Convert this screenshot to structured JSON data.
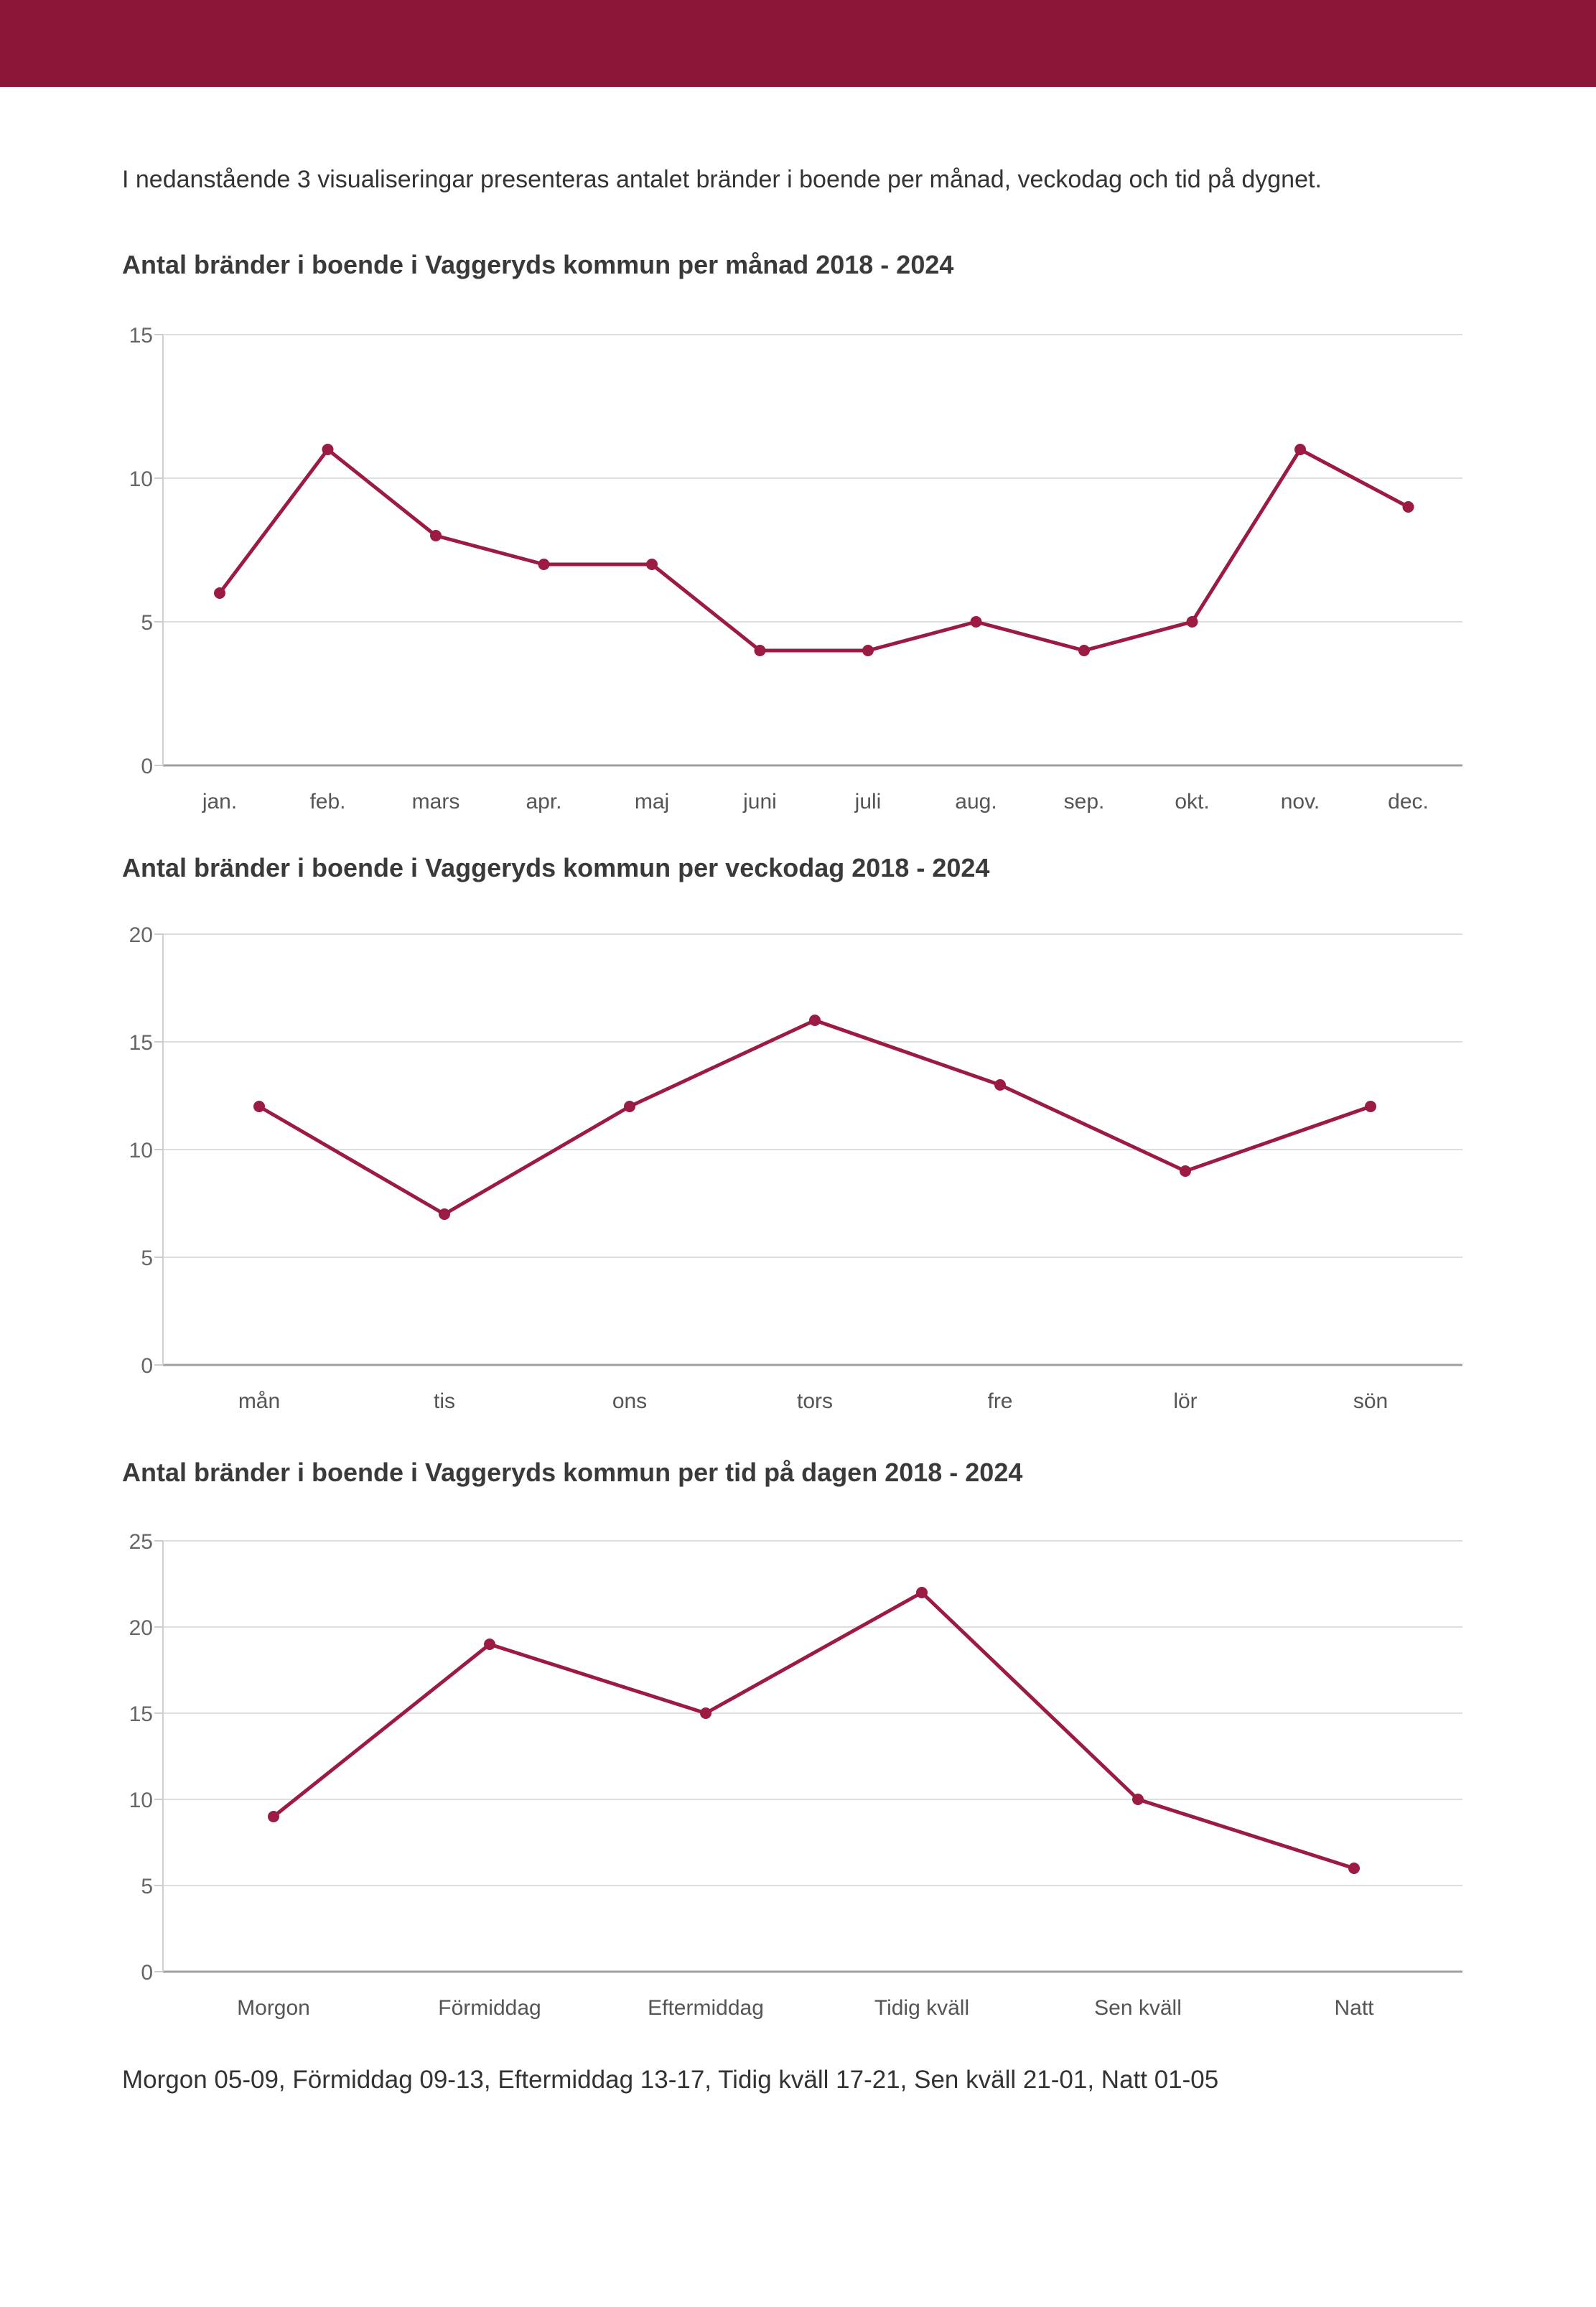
{
  "page": {
    "intro": "I nedanstående 3 visualiseringar presenteras antalet bränder i boende per månad, veckodag och tid på dygnet.",
    "footer": "Morgon 05-09, Förmiddag 09-13, Eftermiddag 13-17, Tidig kväll 17-21, Sen kväll 21-01, Natt 01-05"
  },
  "colors": {
    "header": "#8B1638",
    "line": "#9C1B42",
    "marker": "#9C1B42",
    "gridline": "#DEDEDE",
    "zero_axis": "#A0A0A0",
    "y_axis": "#D0D0D0",
    "tick": "#CCCCCC",
    "tick_label": "#666666",
    "category_label": "#555555",
    "title_text": "#3A3A3A",
    "body_text": "#333333"
  },
  "chart_data": [
    {
      "type": "line",
      "title": "Antal bränder i boende i Vaggeryds kommun per månad 2018 - 2024",
      "categories": [
        "jan.",
        "feb.",
        "mars",
        "apr.",
        "maj",
        "juni",
        "juli",
        "aug.",
        "sep.",
        "okt.",
        "nov.",
        "dec."
      ],
      "values": [
        6,
        11,
        8,
        7,
        7,
        4,
        4,
        5,
        4,
        5,
        11,
        9
      ],
      "xlabel": "",
      "ylabel": "",
      "ylim": [
        0,
        15
      ],
      "ytick_step": 5,
      "grid": true,
      "legend": "none"
    },
    {
      "type": "line",
      "title": "Antal bränder i boende i Vaggeryds kommun per veckodag 2018 - 2024",
      "categories": [
        "mån",
        "tis",
        "ons",
        "tors",
        "fre",
        "lör",
        "sön"
      ],
      "values": [
        12,
        7,
        12,
        16,
        13,
        9,
        12
      ],
      "xlabel": "",
      "ylabel": "",
      "ylim": [
        0,
        20
      ],
      "ytick_step": 5,
      "grid": true,
      "legend": "none"
    },
    {
      "type": "line",
      "title": "Antal bränder i boende i Vaggeryds kommun per tid på dagen 2018 - 2024",
      "categories": [
        "Morgon",
        "Förmiddag",
        "Eftermiddag",
        "Tidig kväll",
        "Sen kväll",
        "Natt"
      ],
      "values": [
        9,
        19,
        15,
        22,
        10,
        6
      ],
      "xlabel": "",
      "ylabel": "",
      "ylim": [
        0,
        25
      ],
      "ytick_step": 5,
      "grid": true,
      "legend": "none"
    }
  ]
}
